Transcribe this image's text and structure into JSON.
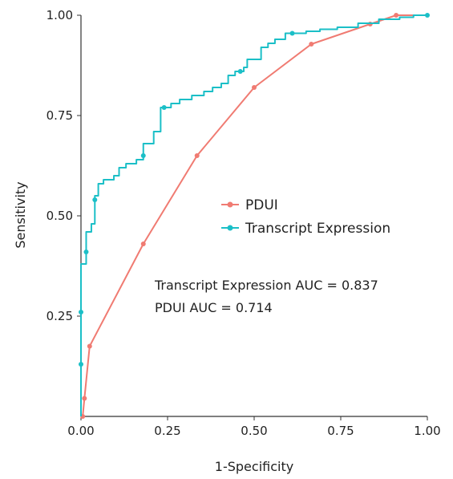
{
  "chart_data": {
    "type": "line",
    "title": "",
    "xlabel": "1-Specificity",
    "ylabel": "Sensitivity",
    "xlim": [
      0,
      1
    ],
    "ylim": [
      0,
      1
    ],
    "x_ticks": [
      "0.00",
      "0.25",
      "0.50",
      "0.75",
      "1.00"
    ],
    "y_ticks": [
      "0.25",
      "0.50",
      "0.75",
      "1.00"
    ],
    "grid": false,
    "legend_position": "center-right",
    "series": [
      {
        "name": "PDUI",
        "color": "#f07b72",
        "style": "line",
        "points": [
          [
            0.0,
            0.0
          ],
          [
            0.005,
            0.0
          ],
          [
            0.01,
            0.045
          ],
          [
            0.025,
            0.175
          ],
          [
            0.18,
            0.43
          ],
          [
            0.335,
            0.65
          ],
          [
            0.5,
            0.82
          ],
          [
            0.665,
            0.928
          ],
          [
            0.835,
            0.978
          ],
          [
            0.91,
            1.0
          ],
          [
            1.0,
            1.0
          ]
        ]
      },
      {
        "name": "Transcript Expression",
        "color": "#1bbfc7",
        "style": "step",
        "points": [
          [
            0.0,
            0.0
          ],
          [
            0.0,
            0.38
          ],
          [
            0.015,
            0.38
          ],
          [
            0.015,
            0.46
          ],
          [
            0.03,
            0.46
          ],
          [
            0.03,
            0.48
          ],
          [
            0.04,
            0.48
          ],
          [
            0.04,
            0.55
          ],
          [
            0.05,
            0.55
          ],
          [
            0.05,
            0.58
          ],
          [
            0.065,
            0.58
          ],
          [
            0.065,
            0.59
          ],
          [
            0.095,
            0.59
          ],
          [
            0.095,
            0.6
          ],
          [
            0.11,
            0.6
          ],
          [
            0.11,
            0.62
          ],
          [
            0.13,
            0.62
          ],
          [
            0.13,
            0.63
          ],
          [
            0.16,
            0.63
          ],
          [
            0.16,
            0.64
          ],
          [
            0.18,
            0.64
          ],
          [
            0.18,
            0.68
          ],
          [
            0.21,
            0.68
          ],
          [
            0.21,
            0.71
          ],
          [
            0.23,
            0.71
          ],
          [
            0.23,
            0.77
          ],
          [
            0.26,
            0.77
          ],
          [
            0.26,
            0.78
          ],
          [
            0.285,
            0.78
          ],
          [
            0.285,
            0.79
          ],
          [
            0.32,
            0.79
          ],
          [
            0.32,
            0.8
          ],
          [
            0.355,
            0.8
          ],
          [
            0.355,
            0.81
          ],
          [
            0.38,
            0.81
          ],
          [
            0.38,
            0.82
          ],
          [
            0.405,
            0.82
          ],
          [
            0.405,
            0.83
          ],
          [
            0.425,
            0.83
          ],
          [
            0.425,
            0.85
          ],
          [
            0.445,
            0.85
          ],
          [
            0.445,
            0.86
          ],
          [
            0.47,
            0.86
          ],
          [
            0.47,
            0.87
          ],
          [
            0.48,
            0.87
          ],
          [
            0.48,
            0.89
          ],
          [
            0.52,
            0.89
          ],
          [
            0.52,
            0.92
          ],
          [
            0.54,
            0.92
          ],
          [
            0.54,
            0.93
          ],
          [
            0.56,
            0.93
          ],
          [
            0.56,
            0.94
          ],
          [
            0.59,
            0.94
          ],
          [
            0.59,
            0.955
          ],
          [
            0.65,
            0.955
          ],
          [
            0.65,
            0.96
          ],
          [
            0.69,
            0.96
          ],
          [
            0.69,
            0.965
          ],
          [
            0.74,
            0.965
          ],
          [
            0.74,
            0.97
          ],
          [
            0.8,
            0.97
          ],
          [
            0.8,
            0.98
          ],
          [
            0.86,
            0.98
          ],
          [
            0.86,
            0.99
          ],
          [
            0.92,
            0.99
          ],
          [
            0.92,
            0.995
          ],
          [
            0.96,
            0.995
          ],
          [
            0.96,
            1.0
          ],
          [
            1.0,
            1.0
          ]
        ],
        "markers": [
          [
            0.0,
            0.13
          ],
          [
            0.0,
            0.26
          ],
          [
            0.015,
            0.41
          ],
          [
            0.04,
            0.54
          ],
          [
            0.18,
            0.65
          ],
          [
            0.24,
            0.77
          ],
          [
            0.46,
            0.86
          ],
          [
            0.61,
            0.955
          ],
          [
            1.0,
            1.0
          ]
        ]
      }
    ],
    "annotations": [
      "Transcript Expression AUC = 0.837",
      "PDUI AUC = 0.714"
    ]
  }
}
